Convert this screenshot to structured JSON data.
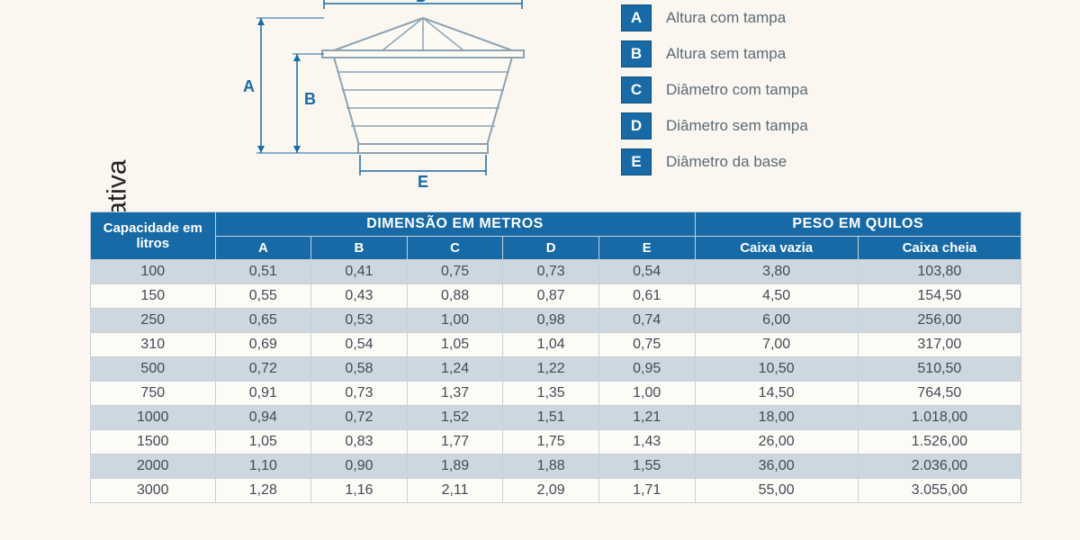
{
  "sideLabel": "Imagem Ilustrativa",
  "legend": [
    {
      "letter": "A",
      "text": "Altura com tampa"
    },
    {
      "letter": "B",
      "text": "Altura sem tampa"
    },
    {
      "letter": "C",
      "text": "Diâmetro com tampa"
    },
    {
      "letter": "D",
      "text": "Diâmetro sem tampa"
    },
    {
      "letter": "E",
      "text": "Diâmetro da base"
    }
  ],
  "diagram": {
    "labels": {
      "A": "A",
      "B": "B",
      "D": "D",
      "E": "E"
    },
    "color_line": "#176aa6",
    "color_tank_fill": "#fdfaf4",
    "color_tank_stroke": "#8da2b3"
  },
  "table": {
    "header": {
      "capacity": "Capacidade em litros",
      "group_dim": "DIMENSÃO EM METROS",
      "group_weight": "PESO EM QUILOS",
      "cols_dim": [
        "A",
        "B",
        "C",
        "D",
        "E"
      ],
      "cols_weight": [
        "Caixa vazia",
        "Caixa cheia"
      ]
    },
    "rows": [
      {
        "cap": "100",
        "A": "0,51",
        "B": "0,41",
        "C": "0,75",
        "D": "0,73",
        "E": "0,54",
        "vazia": "3,80",
        "cheia": "103,80"
      },
      {
        "cap": "150",
        "A": "0,55",
        "B": "0,43",
        "C": "0,88",
        "D": "0,87",
        "E": "0,61",
        "vazia": "4,50",
        "cheia": "154,50"
      },
      {
        "cap": "250",
        "A": "0,65",
        "B": "0,53",
        "C": "1,00",
        "D": "0,98",
        "E": "0,74",
        "vazia": "6,00",
        "cheia": "256,00"
      },
      {
        "cap": "310",
        "A": "0,69",
        "B": "0,54",
        "C": "1,05",
        "D": "1,04",
        "E": "0,75",
        "vazia": "7,00",
        "cheia": "317,00"
      },
      {
        "cap": "500",
        "A": "0,72",
        "B": "0,58",
        "C": "1,24",
        "D": "1,22",
        "E": "0,95",
        "vazia": "10,50",
        "cheia": "510,50"
      },
      {
        "cap": "750",
        "A": "0,91",
        "B": "0,73",
        "C": "1,37",
        "D": "1,35",
        "E": "1,00",
        "vazia": "14,50",
        "cheia": "764,50"
      },
      {
        "cap": "1000",
        "A": "0,94",
        "B": "0,72",
        "C": "1,52",
        "D": "1,51",
        "E": "1,21",
        "vazia": "18,00",
        "cheia": "1.018,00"
      },
      {
        "cap": "1500",
        "A": "1,05",
        "B": "0,83",
        "C": "1,77",
        "D": "1,75",
        "E": "1,43",
        "vazia": "26,00",
        "cheia": "1.526,00"
      },
      {
        "cap": "2000",
        "A": "1,10",
        "B": "0,90",
        "C": "1,89",
        "D": "1,88",
        "E": "1,55",
        "vazia": "36,00",
        "cheia": "2.036,00"
      },
      {
        "cap": "3000",
        "A": "1,28",
        "B": "1,16",
        "C": "2,11",
        "D": "2,09",
        "E": "1,71",
        "vazia": "55,00",
        "cheia": "3.055,00"
      }
    ],
    "alt_row_bg": "#cdd7df",
    "row_bg": "#fdfbf6",
    "header_bg": "#176aa6",
    "border_color": "#c9d0d8",
    "text_color": "#3f4b58",
    "fontsize_header": 15,
    "fontsize_cell": 16
  },
  "colors": {
    "page_bg": "#fbf7f0",
    "accent": "#176aa6",
    "legend_text": "#5a6a78"
  }
}
